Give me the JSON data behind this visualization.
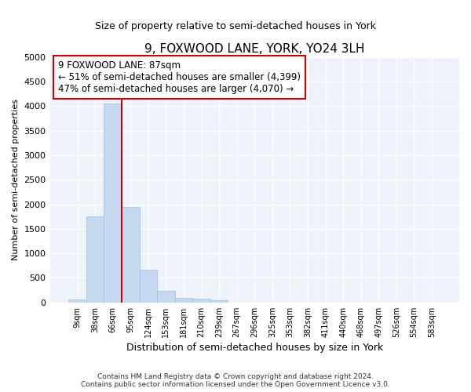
{
  "title": "9, FOXWOOD LANE, YORK, YO24 3LH",
  "subtitle": "Size of property relative to semi-detached houses in York",
  "xlabel": "Distribution of semi-detached houses by size in York",
  "ylabel": "Number of semi-detached properties",
  "bar_color": "#c5d8f0",
  "bar_edge_color": "#a0bedd",
  "background_color": "#eef3fb",
  "grid_color": "#ffffff",
  "tick_labels": [
    "9sqm",
    "38sqm",
    "66sqm",
    "95sqm",
    "124sqm",
    "153sqm",
    "181sqm",
    "210sqm",
    "239sqm",
    "267sqm",
    "296sqm",
    "325sqm",
    "353sqm",
    "382sqm",
    "411sqm",
    "440sqm",
    "468sqm",
    "497sqm",
    "526sqm",
    "554sqm",
    "583sqm"
  ],
  "bar_heights": [
    55,
    1750,
    4050,
    1950,
    660,
    240,
    100,
    70,
    50,
    0,
    0,
    0,
    0,
    0,
    0,
    0,
    0,
    0,
    0,
    0,
    0
  ],
  "ylim": [
    0,
    5000
  ],
  "yticks": [
    0,
    500,
    1000,
    1500,
    2000,
    2500,
    3000,
    3500,
    4000,
    4500,
    5000
  ],
  "annotation_text_line1": "9 FOXWOOD LANE: 87sqm",
  "annotation_text_line2": "← 51% of semi-detached houses are smaller (4,399)",
  "annotation_text_line3": "47% of semi-detached houses are larger (4,070) →",
  "red_line_color": "#cc0000",
  "annotation_box_edge_color": "#cc0000",
  "red_line_x": 2.5,
  "footer_line1": "Contains HM Land Registry data © Crown copyright and database right 2024.",
  "footer_line2": "Contains public sector information licensed under the Open Government Licence v3.0."
}
